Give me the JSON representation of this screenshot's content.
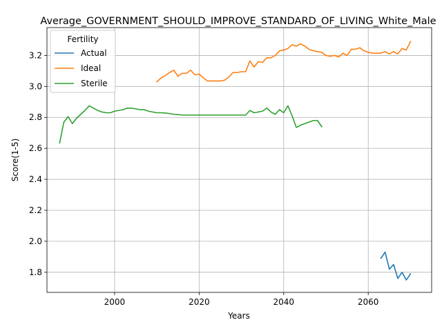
{
  "chart_data": {
    "type": "line",
    "title": "Average_GOVERNMENT_SHOULD_IMPROVE_STANDARD_OF_LIVING_White_Male",
    "xlabel": "Years",
    "ylabel": "Score(1-5)",
    "xlim": [
      1984,
      2075
    ],
    "ylim": [
      1.67,
      3.38
    ],
    "xticks": [
      2000,
      2020,
      2040,
      2060
    ],
    "yticks": [
      1.8,
      2.0,
      2.2,
      2.4,
      2.6,
      2.8,
      3.0,
      3.2
    ],
    "grid": true,
    "legend": {
      "title": "Fertility",
      "position": "upper-left"
    },
    "series": [
      {
        "name": "Actual",
        "color": "#1f77b4",
        "x": [
          2063,
          2064,
          2065,
          2066,
          2067,
          2068,
          2069,
          2070
        ],
        "y": [
          1.89,
          1.93,
          1.82,
          1.85,
          1.76,
          1.8,
          1.75,
          1.79
        ]
      },
      {
        "name": "Ideal",
        "color": "#ff7f0e",
        "x": [
          2010,
          2011,
          2012,
          2013,
          2014,
          2015,
          2016,
          2017,
          2018,
          2019,
          2020,
          2021,
          2022,
          2023,
          2024,
          2025,
          2026,
          2027,
          2028,
          2029,
          2030,
          2031,
          2032,
          2033,
          2034,
          2035,
          2036,
          2037,
          2038,
          2039,
          2040,
          2041,
          2042,
          2043,
          2044,
          2045,
          2046,
          2047,
          2048,
          2049,
          2050,
          2051,
          2052,
          2053,
          2054,
          2055,
          2056,
          2057,
          2058,
          2059,
          2060,
          2061,
          2062,
          2063,
          2064,
          2065,
          2066,
          2067,
          2068,
          2069,
          2070
        ],
        "y": [
          3.03,
          3.055,
          3.07,
          3.09,
          3.105,
          3.065,
          3.085,
          3.085,
          3.105,
          3.075,
          3.08,
          3.055,
          3.035,
          3.035,
          3.035,
          3.035,
          3.04,
          3.06,
          3.09,
          3.09,
          3.095,
          3.095,
          3.165,
          3.125,
          3.16,
          3.155,
          3.185,
          3.185,
          3.2,
          3.23,
          3.235,
          3.245,
          3.27,
          3.26,
          3.275,
          3.26,
          3.24,
          3.23,
          3.225,
          3.22,
          3.2,
          3.195,
          3.2,
          3.19,
          3.215,
          3.2,
          3.24,
          3.24,
          3.25,
          3.23,
          3.22,
          3.215,
          3.215,
          3.215,
          3.225,
          3.21,
          3.225,
          3.21,
          3.245,
          3.235,
          3.29
        ]
      },
      {
        "name": "Sterile",
        "color": "#2ca02c",
        "x": [
          1987,
          1988,
          1989,
          1990,
          1991,
          1992,
          1993,
          1994,
          1995,
          1996,
          1997,
          1998,
          1999,
          2000,
          2001,
          2002,
          2003,
          2004,
          2005,
          2006,
          2007,
          2008,
          2009,
          2010,
          2011,
          2012,
          2013,
          2014,
          2015,
          2016,
          2017,
          2018,
          2019,
          2020,
          2021,
          2022,
          2023,
          2024,
          2025,
          2026,
          2027,
          2028,
          2029,
          2030,
          2031,
          2032,
          2033,
          2034,
          2035,
          2036,
          2037,
          2038,
          2039,
          2040,
          2041,
          2042,
          2043,
          2044,
          2045,
          2046,
          2047,
          2048,
          2049
        ],
        "y": [
          2.635,
          2.77,
          2.805,
          2.76,
          2.795,
          2.82,
          2.845,
          2.875,
          2.86,
          2.845,
          2.835,
          2.83,
          2.83,
          2.84,
          2.845,
          2.85,
          2.86,
          2.86,
          2.855,
          2.85,
          2.85,
          2.84,
          2.835,
          2.83,
          2.83,
          2.828,
          2.825,
          2.82,
          2.818,
          2.815,
          2.815,
          2.815,
          2.815,
          2.815,
          2.815,
          2.815,
          2.815,
          2.815,
          2.815,
          2.815,
          2.815,
          2.815,
          2.815,
          2.815,
          2.815,
          2.845,
          2.83,
          2.835,
          2.84,
          2.86,
          2.835,
          2.82,
          2.85,
          2.83,
          2.875,
          2.81,
          2.735,
          2.75,
          2.76,
          2.77,
          2.78,
          2.78,
          2.74
        ]
      }
    ]
  }
}
